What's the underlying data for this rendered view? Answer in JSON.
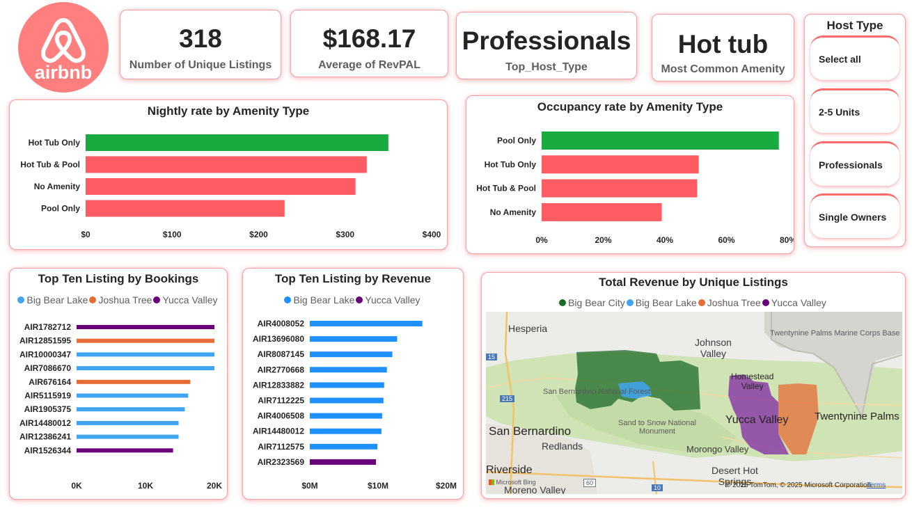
{
  "logo": {
    "text": "airbnb",
    "color": "#ff7f7f"
  },
  "kpis": [
    {
      "value": "318",
      "label": "Number of Unique Listings"
    },
    {
      "value": "$168.17",
      "label": "Average of RevPAL"
    },
    {
      "value": "Professionals",
      "label": "Top_Host_Type"
    },
    {
      "value": "Hot tub",
      "label": "Most Common Amenity"
    }
  ],
  "slicer": {
    "title": "Host Type",
    "options": [
      "Select all",
      "2-5 Units",
      "Professionals",
      "Single Owners"
    ]
  },
  "colors": {
    "highlight": "#1aab40",
    "bar": "#fd5c63",
    "big_bear_lake": "#3fa5f0",
    "joshua_tree": "#e66c37",
    "yucca_valley": "#6b007b",
    "big_bear_city": "#1e6b2a",
    "accent_border": "#f3a4a8"
  },
  "nightly_chart": {
    "title": "Nightly rate by Amenity Type",
    "chart_data": {
      "type": "bar",
      "orientation": "horizontal",
      "categories": [
        "Hot Tub Only",
        "Hot Tub & Pool",
        "No Amenity",
        "Pool Only"
      ],
      "values": [
        350,
        325,
        312,
        230
      ],
      "xlim": [
        0,
        400
      ],
      "ticks": [
        "$0",
        "$100",
        "$200",
        "$300",
        "$400"
      ]
    }
  },
  "occupancy_chart": {
    "title": "Occupancy rate by Amenity Type",
    "chart_data": {
      "type": "bar",
      "orientation": "horizontal",
      "categories": [
        "Pool Only",
        "Hot Tub Only",
        "Hot Tub & Pool",
        "No Amenity"
      ],
      "values": [
        77,
        51,
        50.5,
        39
      ],
      "xlim": [
        0,
        80
      ],
      "ticks": [
        "0%",
        "20%",
        "40%",
        "60%",
        "80%"
      ]
    }
  },
  "bookings_chart": {
    "title": "Top Ten Listing by Bookings",
    "legend": [
      {
        "name": "Big Bear Lake",
        "color": "#3fa5f0"
      },
      {
        "name": "Joshua Tree",
        "color": "#e66c37"
      },
      {
        "name": "Yucca Valley",
        "color": "#6b007b"
      }
    ],
    "chart_data": {
      "type": "bar",
      "orientation": "horizontal",
      "categories": [
        "AIR1782712",
        "AIR12851595",
        "AIR10000347",
        "AIR7086670",
        "AIR676164",
        "AIR5115919",
        "AIR1905375",
        "AIR14480012",
        "AIR12386241",
        "AIR1526344"
      ],
      "values": [
        20000,
        20000,
        20000,
        20000,
        16500,
        16200,
        15700,
        14800,
        14800,
        14000
      ],
      "series_index": [
        2,
        1,
        0,
        0,
        1,
        0,
        0,
        0,
        0,
        2
      ],
      "xlim": [
        0,
        20000
      ],
      "ticks": [
        "0K",
        "10K",
        "20K"
      ]
    }
  },
  "revenue_chart": {
    "title": "Top Ten Listing by Revenue",
    "legend": [
      {
        "name": "Big Bear Lake",
        "color": "#1e90ff"
      },
      {
        "name": "Yucca Valley",
        "color": "#6b007b"
      }
    ],
    "chart_data": {
      "type": "bar",
      "orientation": "horizontal",
      "categories": [
        "AIR4008052",
        "AIR13696080",
        "AIR8087145",
        "AIR2770668",
        "AIR12833882",
        "AIR7112225",
        "AIR4006508",
        "AIR14480012",
        "AIR7112575",
        "AIR2323569"
      ],
      "values": [
        16.5,
        12.8,
        12.1,
        11.3,
        10.9,
        10.8,
        10.6,
        10.5,
        9.9,
        9.7
      ],
      "series_index": [
        0,
        0,
        0,
        0,
        0,
        0,
        0,
        0,
        0,
        1
      ],
      "xlim": [
        0,
        20
      ],
      "ticks": [
        "$0M",
        "$10M",
        "$20M"
      ]
    }
  },
  "map": {
    "title": "Total Revenue by Unique Listings",
    "legend": [
      {
        "name": "Big Bear City",
        "color": "#1e6b2a"
      },
      {
        "name": "Big Bear Lake",
        "color": "#3fa5f0"
      },
      {
        "name": "Joshua Tree",
        "color": "#e66c37"
      },
      {
        "name": "Yucca Valley",
        "color": "#6b007b"
      }
    ],
    "places": {
      "hesperia": "Hesperia",
      "johnson_valley": "Johnson\nValley",
      "twentynine_marine": "Twentynine Palms Marine Corps Base",
      "homestead_valley": "Homestead\nValley",
      "san_bernardino_nf": "San Bernardino National Forest",
      "sand_to_snow": "Sand to Snow National\nMonument",
      "san_bernardino": "San Bernardino",
      "redlands": "Redlands",
      "yucca_valley": "Yucca Valley",
      "twentynine_palms": "Twentynine Palms",
      "morongo_valley": "Morongo Valley",
      "riverside": "Riverside",
      "desert_hot_springs": "Desert Hot\nSprings",
      "moreno_valley": "Moreno Valley",
      "hwy_15": "15",
      "hwy_215": "215",
      "hwy_60": "60",
      "hwy_10": "10"
    },
    "attribution": "© 2025 TomTom, © 2025 Microsoft Corporation",
    "terms": "Terms",
    "bing": "Microsoft Bing"
  }
}
